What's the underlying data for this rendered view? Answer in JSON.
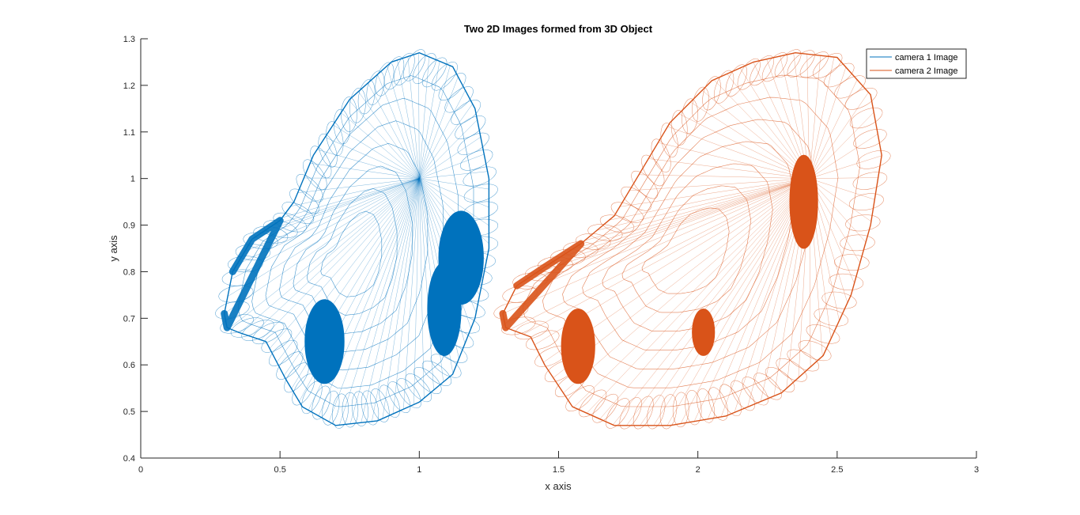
{
  "chart_data": {
    "type": "line",
    "title": "Two 2D Images formed from 3D Object",
    "xlabel": "x axis",
    "ylabel": "y axis",
    "xlim": [
      0,
      3
    ],
    "ylim": [
      0.4,
      1.3
    ],
    "xticks": [
      0,
      0.5,
      1,
      1.5,
      2,
      2.5,
      3
    ],
    "yticks": [
      0.4,
      0.5,
      0.6,
      0.7,
      0.8,
      0.9,
      1,
      1.1,
      1.2,
      1.3
    ],
    "xtick_labels": [
      "0",
      "0.5",
      "1",
      "1.5",
      "2",
      "2.5",
      "3"
    ],
    "ytick_labels": [
      "0.4",
      "0.5",
      "0.6",
      "0.7",
      "0.8",
      "0.9",
      "1",
      "1.1",
      "1.2",
      "1.3"
    ],
    "grid": false,
    "legend_position": "top-right",
    "series": [
      {
        "name": "camera 1 Image",
        "color": "#0072BD",
        "outline": [
          [
            0.3,
            0.71
          ],
          [
            0.31,
            0.68
          ],
          [
            0.35,
            0.67
          ],
          [
            0.45,
            0.65
          ],
          [
            0.52,
            0.57
          ],
          [
            0.58,
            0.51
          ],
          [
            0.7,
            0.47
          ],
          [
            0.85,
            0.48
          ],
          [
            1.0,
            0.52
          ],
          [
            1.12,
            0.58
          ],
          [
            1.2,
            0.7
          ],
          [
            1.25,
            0.85
          ],
          [
            1.25,
            1.0
          ],
          [
            1.2,
            1.15
          ],
          [
            1.12,
            1.24
          ],
          [
            1.0,
            1.27
          ],
          [
            0.9,
            1.25
          ],
          [
            0.75,
            1.17
          ],
          [
            0.62,
            1.05
          ],
          [
            0.55,
            0.95
          ],
          [
            0.5,
            0.91
          ],
          [
            0.4,
            0.87
          ],
          [
            0.33,
            0.8
          ]
        ],
        "hub": [
          1.0,
          1.0
        ],
        "blobs": [
          [
            0.66,
            0.65,
            0.07,
            0.09
          ],
          [
            1.09,
            0.72,
            0.06,
            0.1
          ],
          [
            1.15,
            0.83,
            0.08,
            0.1
          ]
        ]
      },
      {
        "name": "camera 2 Image",
        "color": "#D95319",
        "outline": [
          [
            1.3,
            0.71
          ],
          [
            1.31,
            0.68
          ],
          [
            1.4,
            0.66
          ],
          [
            1.45,
            0.6
          ],
          [
            1.55,
            0.51
          ],
          [
            1.7,
            0.47
          ],
          [
            1.9,
            0.47
          ],
          [
            2.1,
            0.49
          ],
          [
            2.3,
            0.54
          ],
          [
            2.45,
            0.62
          ],
          [
            2.55,
            0.75
          ],
          [
            2.62,
            0.9
          ],
          [
            2.66,
            1.05
          ],
          [
            2.62,
            1.18
          ],
          [
            2.5,
            1.26
          ],
          [
            2.35,
            1.27
          ],
          [
            2.2,
            1.25
          ],
          [
            2.05,
            1.21
          ],
          [
            1.9,
            1.12
          ],
          [
            1.78,
            1.0
          ],
          [
            1.7,
            0.92
          ],
          [
            1.58,
            0.86
          ],
          [
            1.45,
            0.81
          ],
          [
            1.35,
            0.77
          ]
        ],
        "hub": [
          2.4,
          1.0
        ],
        "blobs": [
          [
            1.57,
            0.64,
            0.06,
            0.08
          ],
          [
            2.02,
            0.67,
            0.04,
            0.05
          ],
          [
            2.38,
            0.95,
            0.05,
            0.1
          ]
        ]
      }
    ]
  },
  "legend": {
    "entries": [
      "camera 1 Image",
      "camera 2 Image"
    ]
  }
}
